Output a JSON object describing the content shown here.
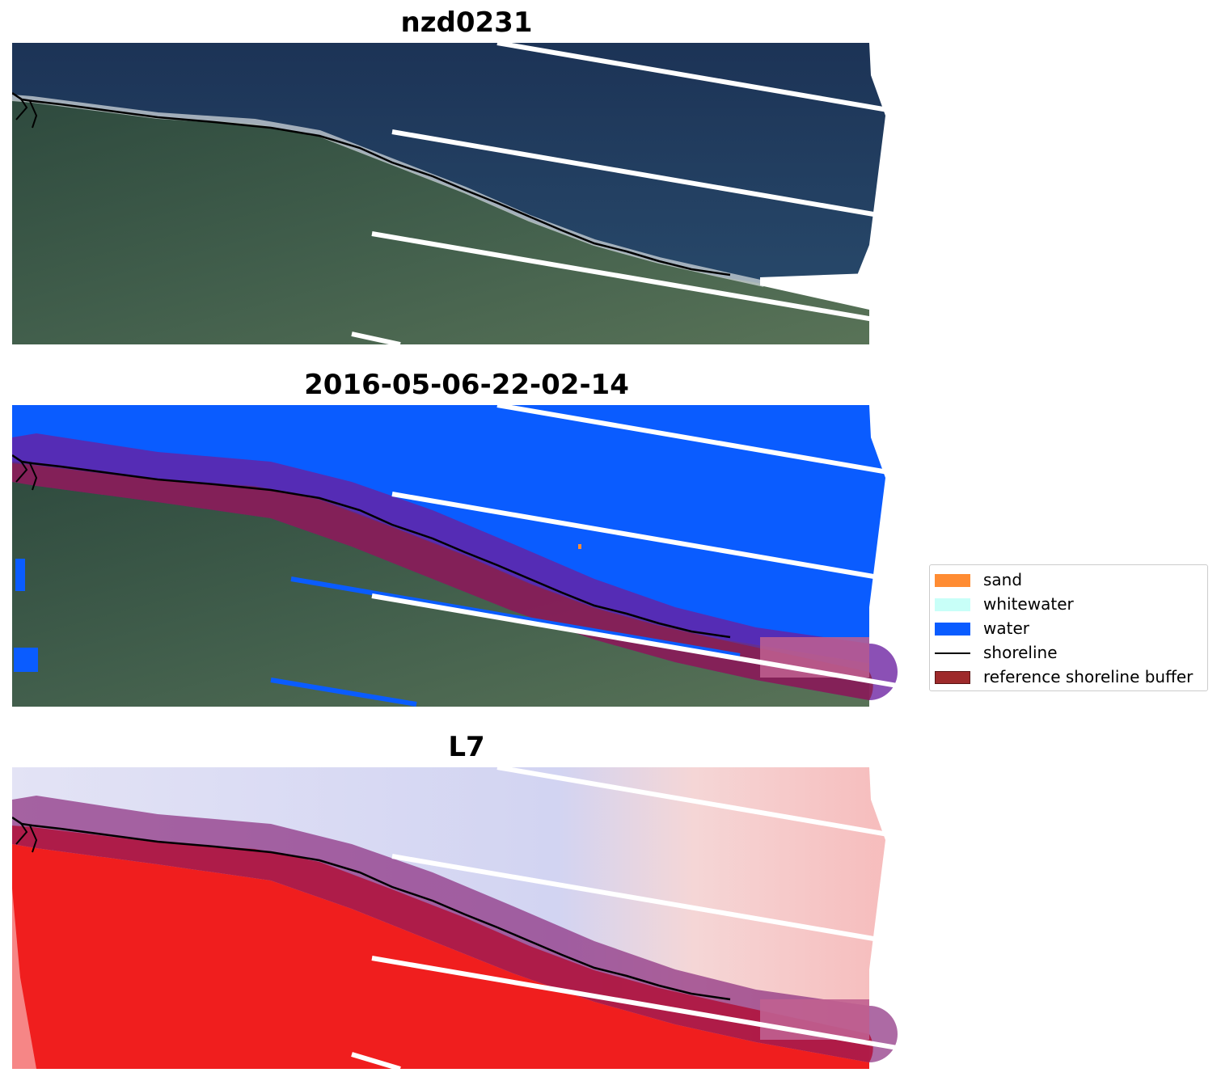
{
  "panels": [
    {
      "title": "nzd0231"
    },
    {
      "title": "2016-05-06-22-02-14"
    },
    {
      "title": "L7"
    }
  ],
  "legend": {
    "items": [
      {
        "label": "sand",
        "color": "#ff8c33",
        "kind": "patch"
      },
      {
        "label": "whitewater",
        "color": "#c8fff8",
        "kind": "patch"
      },
      {
        "label": "water",
        "color": "#0a5cff",
        "kind": "patch"
      },
      {
        "label": "shoreline",
        "color": "#000000",
        "kind": "line"
      },
      {
        "label": "reference shoreline buffer",
        "color": "#9e2a2b",
        "kind": "patch"
      }
    ]
  },
  "colors": {
    "ocean_rgb": "#1f3a5c",
    "land_rgb": "#3d5a4a",
    "water_class": "#0a5cff",
    "buffer_overlay": "#8a1f4f",
    "land_index": "#f01e1e",
    "water_index": "#d7d9f2"
  }
}
